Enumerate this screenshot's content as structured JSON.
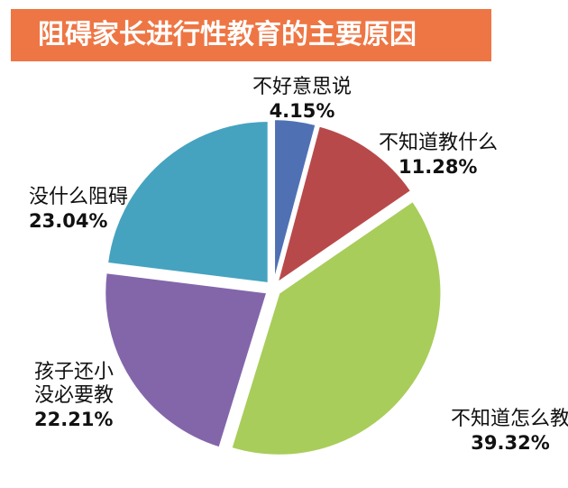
{
  "title": "阻碍家长进行性教育的主要原因",
  "colors": {
    "title_bg": "#ee7644",
    "title_text": "#ffffff"
  },
  "chart_data": {
    "type": "pie",
    "title": "阻碍家长进行性教育的主要原因",
    "legend": "none",
    "slices": [
      {
        "label": "不好意思说",
        "value": 4.15,
        "value_label": "4.15%",
        "color": "#4f71b4"
      },
      {
        "label": "不知道教什么",
        "value": 11.28,
        "value_label": "11.28%",
        "color": "#b8494a"
      },
      {
        "label": "不知道怎么教",
        "value": 39.32,
        "value_label": "39.32%",
        "color": "#a8cd5a"
      },
      {
        "label": "孩子还小没必要教",
        "label_lines": [
          "孩子还小",
          "没必要教"
        ],
        "value": 22.21,
        "value_label": "22.21%",
        "color": "#8366aa"
      },
      {
        "label": "没什么阻碍",
        "value": 23.04,
        "value_label": "23.04%",
        "color": "#45a3c0"
      }
    ]
  }
}
